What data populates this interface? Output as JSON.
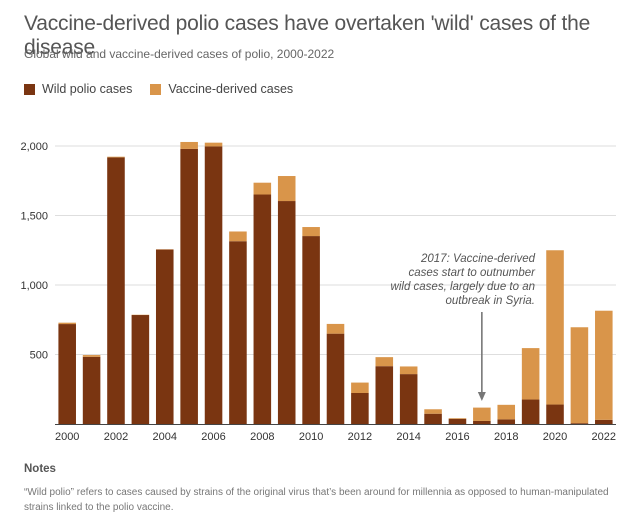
{
  "header": {
    "title": "Vaccine-derived polio cases have overtaken 'wild' cases of the disease",
    "subtitle": "Global wild and vaccine-derived cases of polio, 2000-2022"
  },
  "legend": {
    "wild_label": "Wild polio cases",
    "vaccine_label": "Vaccine-derived cases"
  },
  "colors": {
    "wild": "#7a3511",
    "vaccine": "#d9954a",
    "grid": "#dedede",
    "axis": "#444444",
    "annotation": "#555555"
  },
  "annotation": {
    "lines": [
      "2017: Vaccine-derived",
      "cases start to outnumber",
      "wild cases, largely due to an",
      "outbreak in Syria."
    ],
    "year": "2017"
  },
  "notes": {
    "title": "Notes",
    "text": "“Wild polio” refers to cases caused by strains of the original virus that’s been around for millennia as opposed to human-manipulated strains linked to the polio vaccine."
  },
  "chart_data": {
    "type": "bar",
    "stacked": true,
    "categories": [
      "2000",
      "2001",
      "2002",
      "2003",
      "2004",
      "2005",
      "2006",
      "2007",
      "2008",
      "2009",
      "2010",
      "2011",
      "2012",
      "2013",
      "2014",
      "2015",
      "2016",
      "2017",
      "2018",
      "2019",
      "2020",
      "2021",
      "2022"
    ],
    "x_tick_labels": [
      "2000",
      "2002",
      "2004",
      "2006",
      "2008",
      "2010",
      "2012",
      "2014",
      "2016",
      "2018",
      "2020",
      "2022"
    ],
    "y_ticks": [
      500,
      1000,
      1500,
      2000
    ],
    "y_tick_labels": [
      "500",
      "1,000",
      "1,500",
      "2,000"
    ],
    "ylim": [
      0,
      2100
    ],
    "grid": true,
    "series": [
      {
        "name": "Wild polio cases",
        "values": [
          719,
          483,
          1918,
          784,
          1255,
          1979,
          1997,
          1315,
          1651,
          1604,
          1352,
          650,
          223,
          416,
          359,
          74,
          37,
          22,
          33,
          176,
          140,
          6,
          30
        ]
      },
      {
        "name": "Vaccine-derived cases",
        "values": [
          10,
          13,
          5,
          2,
          2,
          50,
          27,
          70,
          85,
          180,
          65,
          70,
          75,
          65,
          55,
          32,
          5,
          96,
          105,
          370,
          1110,
          690,
          785
        ]
      }
    ]
  }
}
